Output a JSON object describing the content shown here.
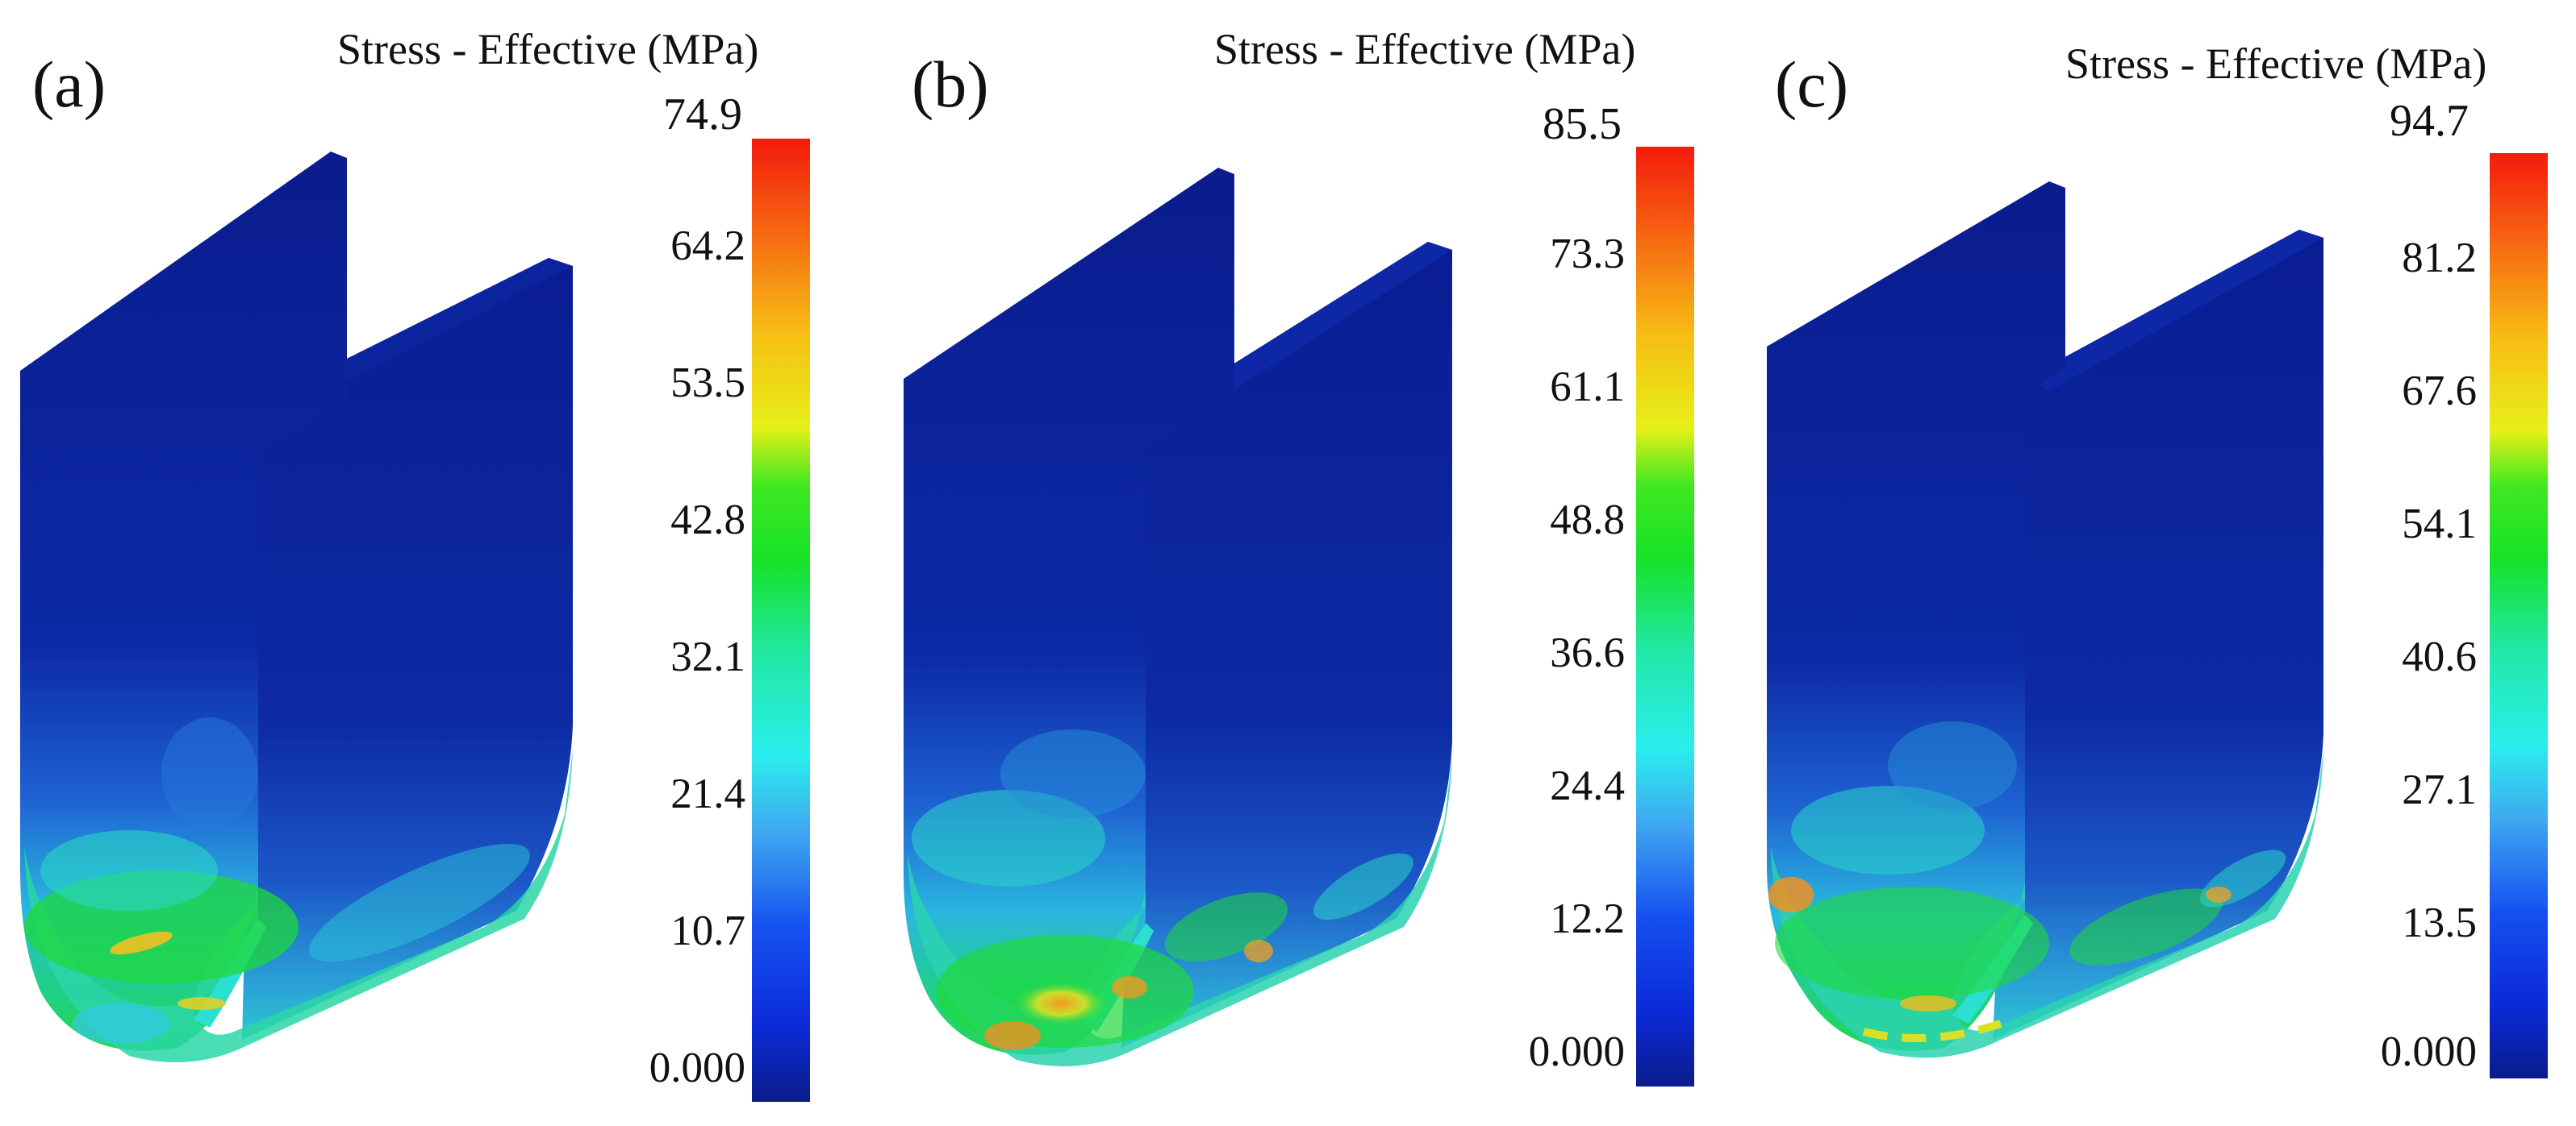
{
  "panels": [
    {
      "label": "(a)",
      "title": "Stress - Effective (MPa)",
      "max": "74.9",
      "ticks": [
        "64.2",
        "53.5",
        "42.8",
        "32.1",
        "21.4",
        "10.7",
        "0.000"
      ]
    },
    {
      "label": "(b)",
      "title": "Stress - Effective (MPa)",
      "max": "85.5",
      "ticks": [
        "73.3",
        "61.1",
        "48.8",
        "36.6",
        "24.4",
        "12.2",
        "0.000"
      ]
    },
    {
      "label": "(c)",
      "title": "Stress - Effective (MPa)",
      "max": "94.7",
      "ticks": [
        "81.2",
        "67.6",
        "54.1",
        "40.6",
        "27.1",
        "13.5",
        "0.000"
      ]
    }
  ],
  "colors": {
    "deep_blue": "#0a1a9a",
    "blue": "#1036c8",
    "cyan": "#26e8e8",
    "green": "#1fdc2a",
    "yellow": "#f2ee12",
    "orange": "#f39a18",
    "red": "#f41a0c"
  }
}
